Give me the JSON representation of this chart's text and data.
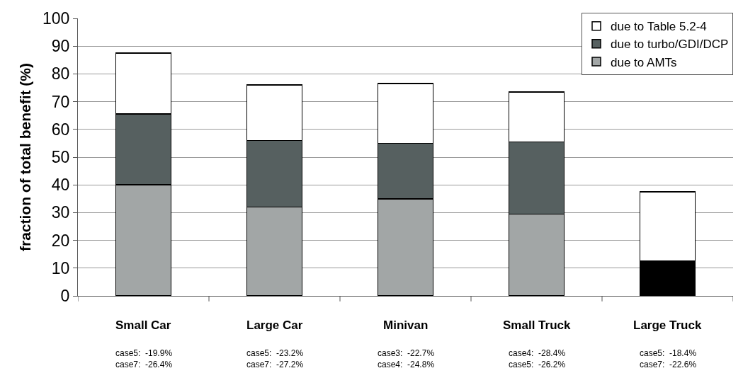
{
  "chart_data": {
    "type": "bar",
    "stacked": true,
    "ylabel": "fraction of total benefit (%)",
    "categories": [
      "Small Car",
      "Large Car",
      "Minivan",
      "Small Truck",
      "Large Truck"
    ],
    "series": [
      {
        "name": "due to AMTs",
        "color": "#a2a6a6",
        "colors": [
          null,
          null,
          null,
          null,
          "#000000"
        ],
        "values": [
          40,
          32,
          35,
          29.5,
          12.5
        ]
      },
      {
        "name": "due to turbo/GDI/DCP",
        "color": "#566060",
        "values": [
          25.5,
          24,
          20,
          26,
          0
        ]
      },
      {
        "name": "due to Table 5.2-4",
        "color": "#ffffff",
        "values": [
          22,
          20,
          21.5,
          18,
          25
        ]
      }
    ],
    "ylim": [
      0,
      100
    ],
    "yticks": [
      0,
      10,
      20,
      30,
      40,
      50,
      60,
      70,
      80,
      90,
      100
    ],
    "grid": "y",
    "legend": "top right",
    "annotations": [
      "case5:  -19.9%\ncase7:  -26.4%",
      "case5:  -23.2%\ncase7:  -27.2%",
      "case3:  -22.7%\ncase4:  -24.8%",
      "case4:  -28.4%\ncase5:  -26.2%",
      "case5:  -18.4%\ncase7:  -22.6%"
    ]
  }
}
